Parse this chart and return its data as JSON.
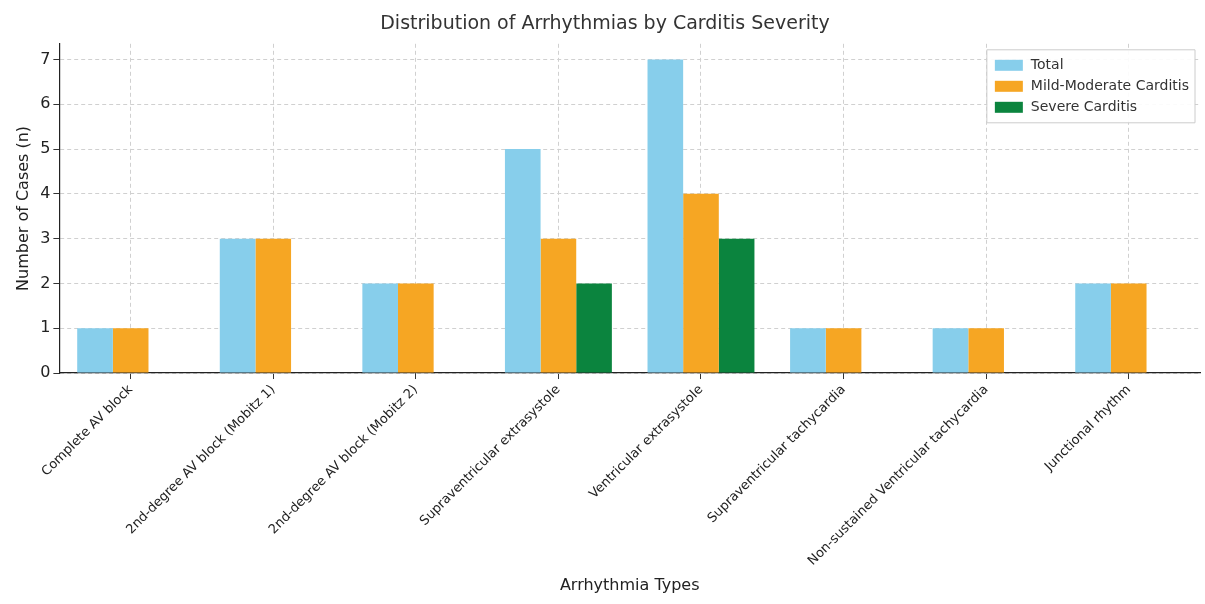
{
  "chart_data": {
    "type": "bar",
    "title": "Distribution of Arrhythmias by Carditis Severity",
    "xlabel": "Arrhythmia Types",
    "ylabel": "Number of Cases (n)",
    "categories": [
      "Complete AV block",
      "2nd-degree AV block (Mobitz 1)",
      "2nd-degree AV block (Mobitz 2)",
      "Supraventricular extrasystole",
      "Ventricular extrasystole",
      "Supraventricular tachycardia",
      "Non-sustained Ventricular tachycardia",
      "Junctional rhythm"
    ],
    "series": [
      {
        "name": "Total",
        "color": "#87ceeb",
        "values": [
          1,
          3,
          2,
          5,
          7,
          1,
          1,
          2
        ]
      },
      {
        "name": "Mild-Moderate Carditis",
        "color": "#f6a623",
        "values": [
          1,
          3,
          2,
          3,
          4,
          1,
          1,
          2
        ]
      },
      {
        "name": "Severe Carditis",
        "color": "#0b843e",
        "values": [
          0,
          0,
          0,
          2,
          3,
          0,
          0,
          0
        ]
      }
    ],
    "ylim": [
      0,
      7.35
    ],
    "yticks": [
      0,
      1,
      2,
      3,
      4,
      5,
      6,
      7
    ],
    "grid": true,
    "legend": "top right"
  }
}
